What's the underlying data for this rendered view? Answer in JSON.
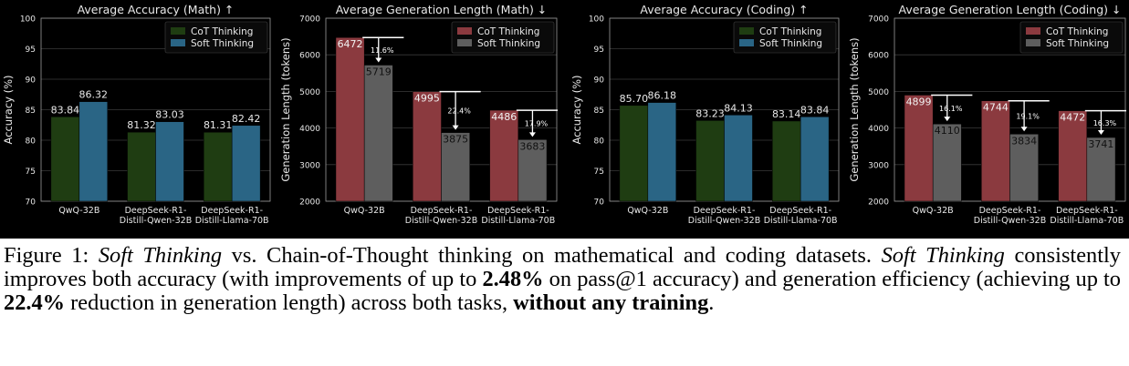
{
  "colors": {
    "background": "#000000",
    "text": "#e8e8e8",
    "grid": "#3a3a3a",
    "cot_accuracy": "#1f3d12",
    "soft_accuracy": "#2a6585",
    "cot_length": "#8b3a3f",
    "soft_length": "#5e5e5e"
  },
  "chart_data": [
    {
      "type": "bar",
      "title": "Average Accuracy (Math) ↑",
      "ylabel": "Accuracy (%)",
      "ylim": [
        70,
        100
      ],
      "yticks": [
        70,
        75,
        80,
        85,
        90,
        95,
        100
      ],
      "categories": [
        "QwQ-32B",
        "DeepSeek-R1-\nDistill-Qwen-32B",
        "DeepSeek-R1-\nDistill-Llama-70B"
      ],
      "series": [
        {
          "name": "CoT Thinking",
          "values": [
            83.84,
            81.32,
            81.31
          ],
          "labels": [
            "83.84",
            "81.32",
            "81.31"
          ]
        },
        {
          "name": "Soft Thinking",
          "values": [
            86.32,
            83.03,
            82.42
          ],
          "labels": [
            "86.32",
            "83.03",
            "82.42"
          ]
        }
      ],
      "legend": "top-right",
      "grid": true
    },
    {
      "type": "bar",
      "title": "Average Generation Length (Math) ↓",
      "ylabel": "Generation Length (tokens)",
      "ylim": [
        2000,
        7000
      ],
      "yticks": [
        2000,
        3000,
        4000,
        5000,
        6000,
        7000
      ],
      "categories": [
        "QwQ-32B",
        "DeepSeek-R1-\nDistill-Qwen-32B",
        "DeepSeek-R1-\nDistill-Llama-70B"
      ],
      "series": [
        {
          "name": "CoT Thinking",
          "values": [
            6472,
            4995,
            4486
          ],
          "labels": [
            "6472",
            "4995",
            "4486"
          ]
        },
        {
          "name": "Soft Thinking",
          "values": [
            5719,
            3875,
            3683
          ],
          "labels": [
            "5719",
            "3875",
            "3683"
          ]
        }
      ],
      "annotations": [
        "11.6%",
        "22.4%",
        "17.9%"
      ],
      "legend": "top-right",
      "grid": true
    },
    {
      "type": "bar",
      "title": "Average Accuracy (Coding) ↑",
      "ylabel": "Accuracy (%)",
      "ylim": [
        70,
        100
      ],
      "yticks": [
        70,
        75,
        80,
        85,
        90,
        95,
        100
      ],
      "categories": [
        "QwQ-32B",
        "DeepSeek-R1-\nDistill-Qwen-32B",
        "DeepSeek-R1-\nDistill-Llama-70B"
      ],
      "series": [
        {
          "name": "CoT Thinking",
          "values": [
            85.7,
            83.23,
            83.14
          ],
          "labels": [
            "85.70",
            "83.23",
            "83.14"
          ]
        },
        {
          "name": "Soft Thinking",
          "values": [
            86.18,
            84.13,
            83.84
          ],
          "labels": [
            "86.18",
            "84.13",
            "83.84"
          ]
        }
      ],
      "legend": "top-right",
      "grid": true
    },
    {
      "type": "bar",
      "title": "Average Generation Length (Coding) ↓",
      "ylabel": "Generation Length (tokens)",
      "ylim": [
        2000,
        7000
      ],
      "yticks": [
        2000,
        3000,
        4000,
        5000,
        6000,
        7000
      ],
      "categories": [
        "QwQ-32B",
        "DeepSeek-R1-\nDistill-Qwen-32B",
        "DeepSeek-R1-\nDistill-Llama-70B"
      ],
      "series": [
        {
          "name": "CoT Thinking",
          "values": [
            4899,
            4744,
            4472
          ],
          "labels": [
            "4899",
            "4744",
            "4472"
          ]
        },
        {
          "name": "Soft Thinking",
          "values": [
            4110,
            3834,
            3741
          ],
          "labels": [
            "4110",
            "3834",
            "3741"
          ]
        }
      ],
      "annotations": [
        "16.1%",
        "19.1%",
        "16.3%"
      ],
      "legend": "top-right",
      "grid": true
    }
  ],
  "caption": {
    "figure_label": "Figure 1: ",
    "soft_thinking_1": "Soft Thinking",
    "part_1": " vs. Chain-of-Thought thinking on mathematical and coding datasets. ",
    "soft_thinking_2": "Soft Thinking",
    "part_2": " consistently improves both accuracy (with improvements of up to ",
    "bold_1": "2.48%",
    "part_3": " on pass@1 accuracy) and generation efficiency (achieving up to ",
    "bold_2": "22.4%",
    "part_4": " reduction in generation length) across both tasks, ",
    "bold_3": "without any training",
    "part_5": "."
  }
}
